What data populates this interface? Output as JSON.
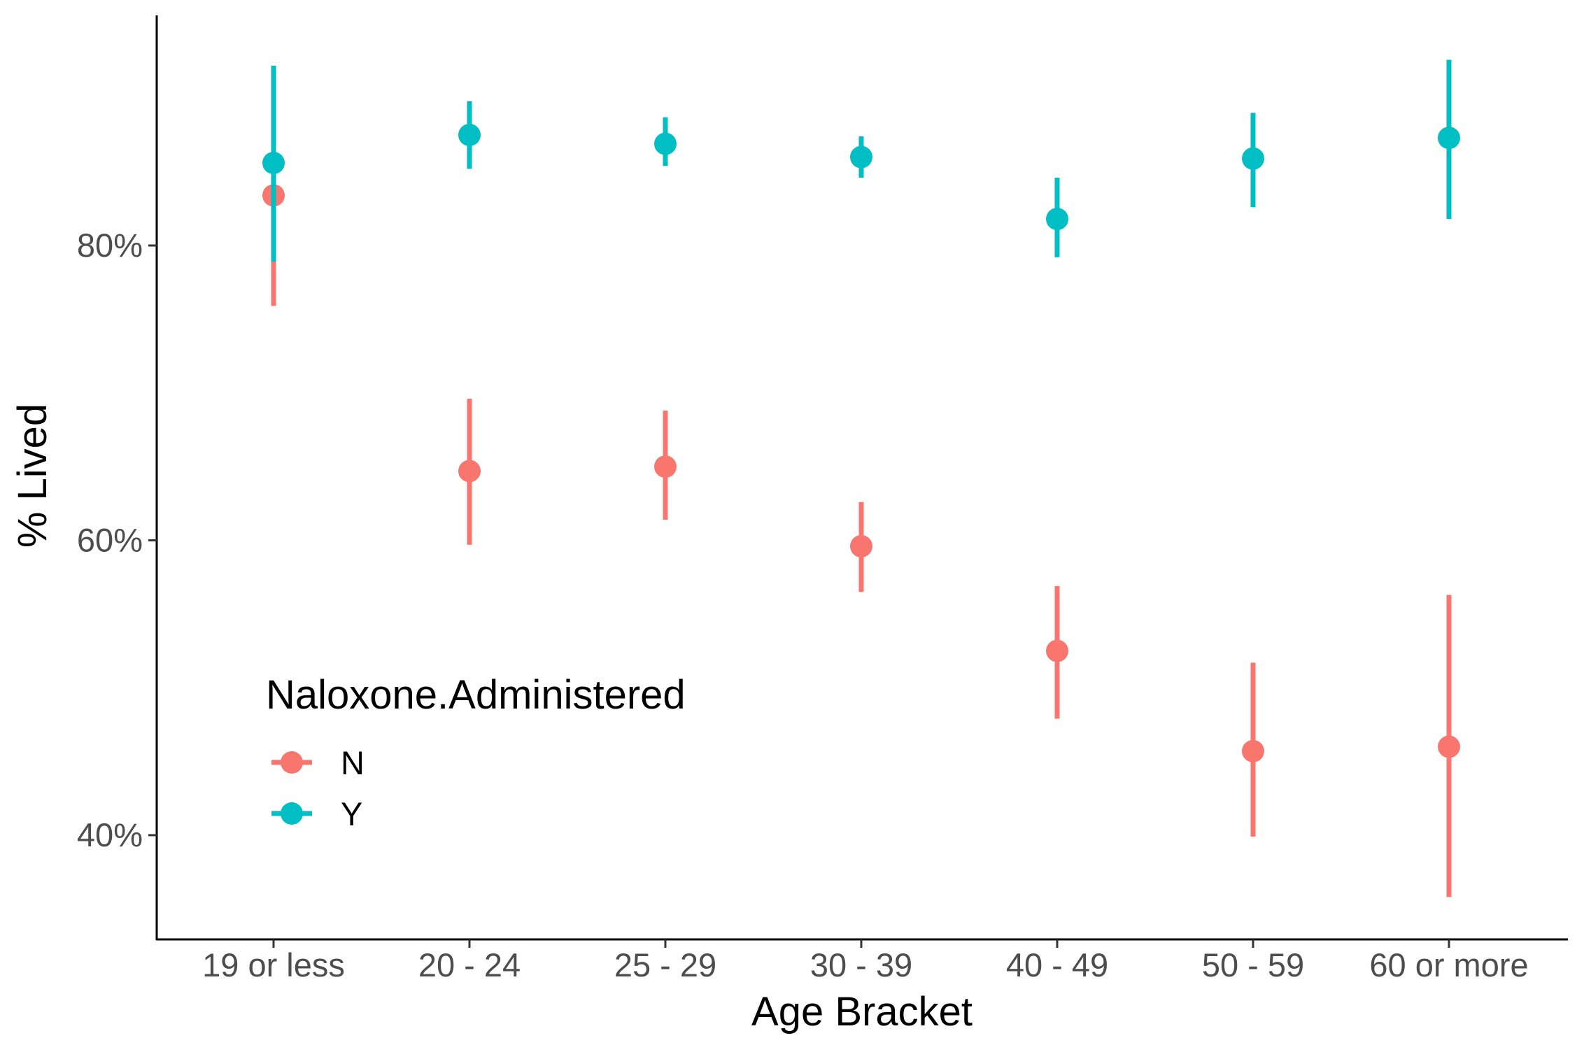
{
  "chart_data": {
    "type": "scatter",
    "title": "",
    "xlabel": "Age Bracket",
    "ylabel": "% Lived",
    "categories": [
      "19 or less",
      "20 - 24",
      "25 - 29",
      "30 - 39",
      "40 - 49",
      "50 - 59",
      "60 or more"
    ],
    "ylim": [
      33,
      95.5
    ],
    "yticks": [
      40,
      60,
      80
    ],
    "ytick_labels": [
      "40%",
      "60%",
      "80%"
    ],
    "grid": false,
    "legend": {
      "title": "Naloxone.Administered",
      "position": "inside-left"
    },
    "series": [
      {
        "name": "N",
        "color": "#F8766D",
        "values": [
          83.4,
          64.7,
          65.0,
          59.6,
          52.5,
          45.7,
          46.0
        ],
        "lower": [
          75.9,
          59.7,
          61.4,
          56.5,
          47.9,
          39.9,
          35.8
        ],
        "upper": [
          88.9,
          69.6,
          68.8,
          62.6,
          56.9,
          51.7,
          56.3
        ]
      },
      {
        "name": "Y",
        "color": "#00BFC4",
        "values": [
          85.6,
          87.5,
          86.9,
          86.0,
          81.8,
          85.9,
          87.3
        ],
        "lower": [
          78.9,
          85.2,
          85.4,
          84.6,
          79.2,
          82.6,
          81.8
        ],
        "upper": [
          92.2,
          89.8,
          88.7,
          87.4,
          84.6,
          89.0,
          92.6
        ]
      }
    ]
  }
}
